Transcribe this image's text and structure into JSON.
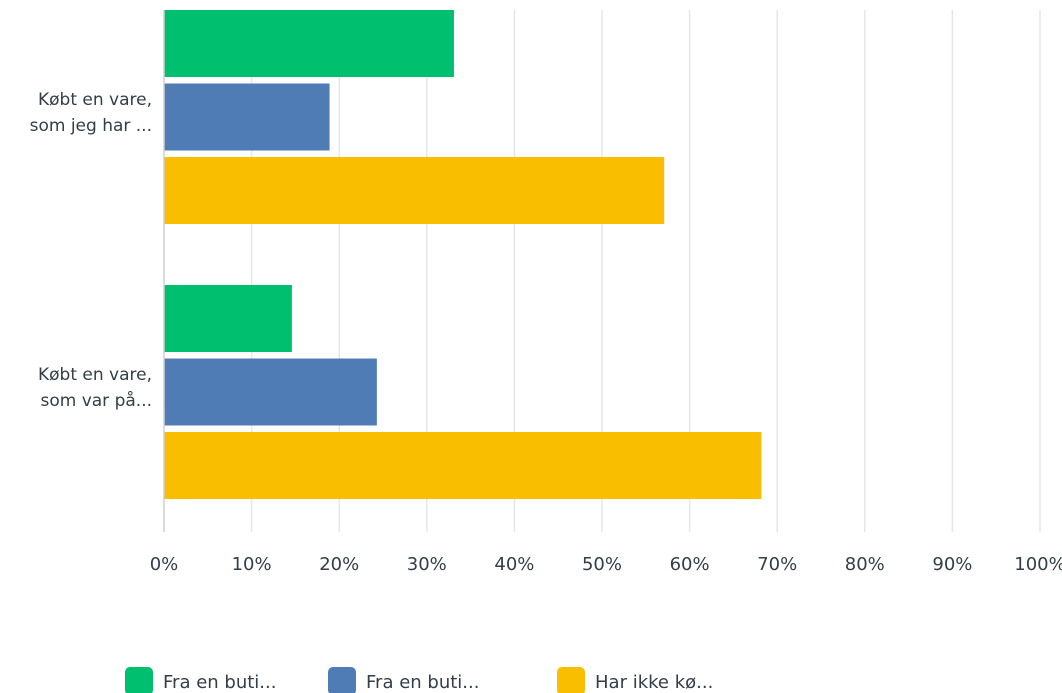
{
  "chart_data": {
    "type": "bar",
    "orientation": "horizontal",
    "categories": [
      [
        "Købt en vare,",
        "som jeg har ..."
      ],
      [
        "Købt en vare,",
        "som var på..."
      ]
    ],
    "series": [
      {
        "name": "Fra en buti...",
        "color": "#00bf6f",
        "values": [
          33.1,
          14.6
        ]
      },
      {
        "name": "Fra en buti...",
        "color": "#507cb6",
        "values": [
          18.9,
          24.3
        ]
      },
      {
        "name": "Har ikke kø...",
        "color": "#f9be00",
        "values": [
          57.1,
          68.2
        ]
      }
    ],
    "xlim": [
      0,
      100
    ],
    "x_ticks": [
      "0%",
      "10%",
      "20%",
      "30%",
      "40%",
      "50%",
      "60%",
      "70%",
      "80%",
      "90%",
      "100%"
    ],
    "grid": true,
    "legend_position": "bottom"
  }
}
